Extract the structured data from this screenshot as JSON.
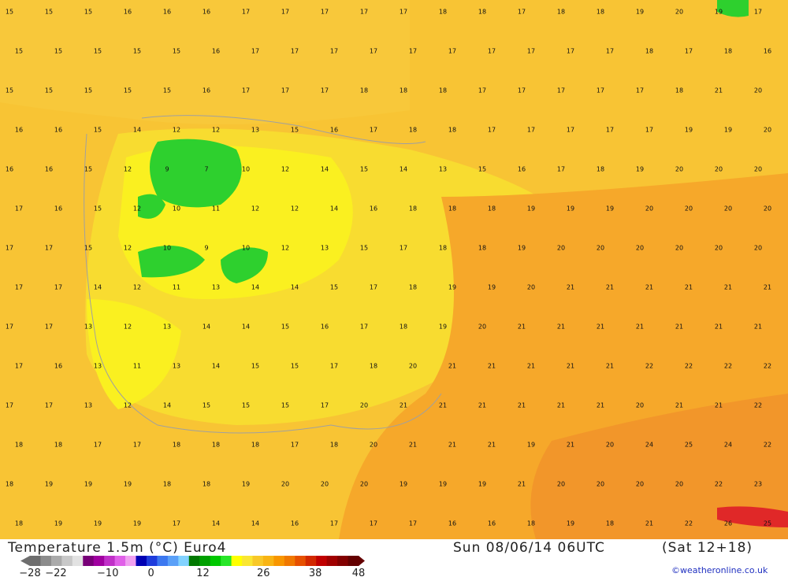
{
  "header": {
    "title": "Temperature 1.5m (°C) Euro4",
    "valid": "Sun 08/06/14 06UTC",
    "run": "(Sat 12+18)",
    "credit": "©weatheronline.co.uk"
  },
  "colorbar": {
    "colors": [
      "#6e6e6e",
      "#8c8c8c",
      "#aaaaaa",
      "#c8c8c8",
      "#e2e2e2",
      "#780078",
      "#a000a0",
      "#c030c8",
      "#e060e8",
      "#f0a0f0",
      "#0000b4",
      "#1e3cdc",
      "#3c78f0",
      "#5aa0f8",
      "#82d2ff",
      "#007800",
      "#00a000",
      "#00c800",
      "#28e628",
      "#ffff00",
      "#fae632",
      "#f8c828",
      "#f8b414",
      "#f89600",
      "#f07800",
      "#e65000",
      "#d22800",
      "#c00000",
      "#a00000",
      "#820000",
      "#640000"
    ],
    "ticks": [
      {
        "value": -28,
        "label": "−28"
      },
      {
        "value": -22,
        "label": "−22"
      },
      {
        "value": -10,
        "label": "−10"
      },
      0,
      12,
      26,
      38,
      48
    ]
  },
  "grid": {
    "rows": [
      [
        15,
        15,
        15,
        16,
        16,
        16,
        17,
        17,
        17,
        17,
        17,
        18,
        18,
        17,
        18,
        18,
        19,
        20,
        19,
        17
      ],
      [
        15,
        15,
        15,
        15,
        15,
        16,
        17,
        17,
        17,
        17,
        17,
        17,
        17,
        17,
        17,
        17,
        18,
        17,
        18,
        16
      ],
      [
        15,
        15,
        15,
        15,
        15,
        16,
        17,
        17,
        17,
        18,
        18,
        18,
        17,
        17,
        17,
        17,
        17,
        18,
        21,
        20
      ],
      [
        16,
        16,
        15,
        14,
        12,
        12,
        13,
        15,
        16,
        17,
        18,
        18,
        17,
        17,
        17,
        17,
        17,
        19,
        19,
        20
      ],
      [
        16,
        16,
        15,
        12,
        9,
        7,
        10,
        12,
        14,
        15,
        14,
        13,
        15,
        16,
        17,
        18,
        19,
        20,
        20,
        20
      ],
      [
        17,
        16,
        15,
        12,
        10,
        11,
        12,
        12,
        14,
        16,
        18,
        18,
        18,
        19,
        19,
        19,
        20,
        20,
        20,
        20
      ],
      [
        17,
        17,
        15,
        12,
        10,
        9,
        10,
        12,
        13,
        15,
        17,
        18,
        18,
        19,
        20,
        20,
        20,
        20,
        20,
        20
      ],
      [
        17,
        17,
        14,
        12,
        11,
        13,
        14,
        14,
        15,
        17,
        18,
        19,
        19,
        20,
        21,
        21,
        21,
        21,
        21,
        21
      ],
      [
        17,
        17,
        13,
        12,
        13,
        14,
        14,
        15,
        16,
        17,
        18,
        19,
        20,
        21,
        21,
        21,
        21,
        21,
        21,
        21
      ],
      [
        17,
        16,
        13,
        11,
        13,
        14,
        15,
        15,
        17,
        18,
        20,
        21,
        21,
        21,
        21,
        21,
        22,
        22,
        22,
        22
      ],
      [
        17,
        17,
        13,
        12,
        14,
        15,
        15,
        15,
        17,
        20,
        21,
        21,
        21,
        21,
        21,
        21,
        20,
        21,
        21,
        22
      ],
      [
        18,
        18,
        17,
        17,
        18,
        18,
        18,
        17,
        18,
        20,
        21,
        21,
        21,
        19,
        21,
        20,
        24,
        25,
        24,
        22
      ],
      [
        18,
        19,
        19,
        19,
        18,
        18,
        19,
        20,
        20,
        20,
        19,
        19,
        19,
        21,
        20,
        20,
        20,
        20,
        22,
        23
      ],
      [
        18,
        19,
        19,
        19,
        17,
        14,
        14,
        16,
        17,
        17,
        17,
        16,
        16,
        18,
        19,
        18,
        21,
        22,
        26,
        25
      ]
    ]
  }
}
